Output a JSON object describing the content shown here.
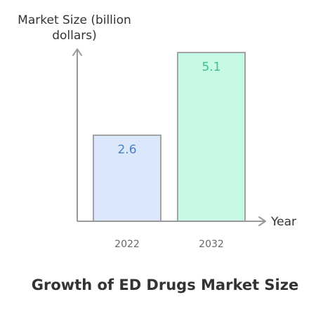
{
  "chart_data": {
    "type": "bar",
    "title": "Growth of ED Drugs Market Size",
    "ylabel": "Market Size (billion dollars)",
    "xlabel": "Year",
    "categories": [
      "2022",
      "2032"
    ],
    "values": [
      2.6,
      5.1
    ],
    "ylim": [
      0,
      5.1
    ],
    "grid": false,
    "bar_fill_colors": [
      "#dbe8fc",
      "#c7fae4"
    ],
    "label_colors": [
      "#4a7fc1",
      "#3fbf86"
    ],
    "axis_color": "#999999"
  }
}
